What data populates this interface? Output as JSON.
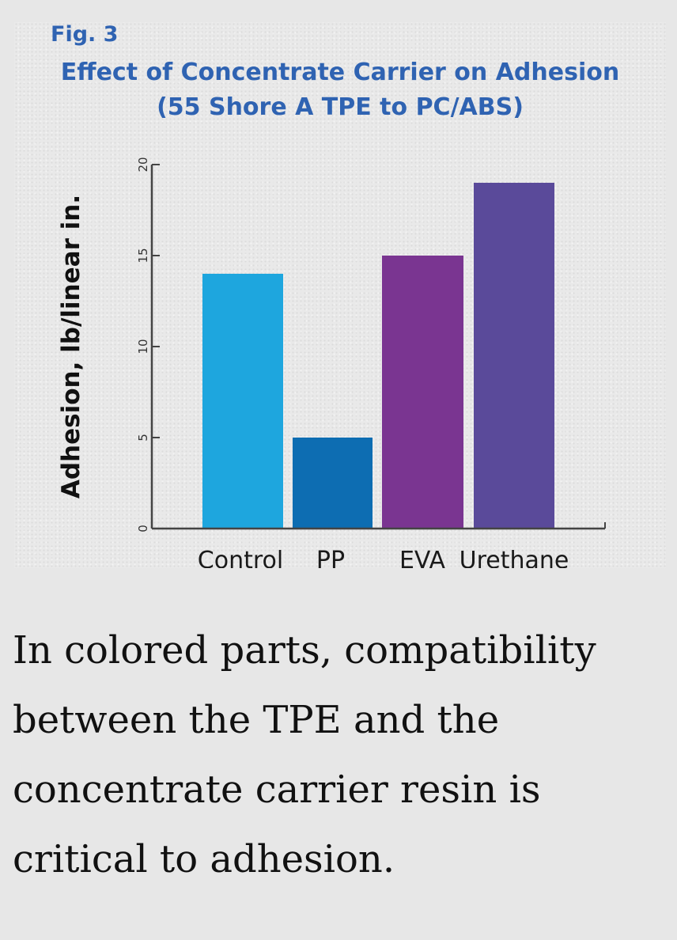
{
  "figure": {
    "label": "Fig. 3",
    "title_line1": "Effect of Concentrate Carrier on Adhesion",
    "title_line2": "(55 Shore A TPE to PC/ABS)"
  },
  "chart_data": {
    "type": "bar",
    "categories": [
      "Control",
      "PP",
      "EVA",
      "Urethane"
    ],
    "values": [
      14,
      5,
      15,
      19
    ],
    "colors": [
      "#1ea6de",
      "#0d6db2",
      "#7a3591",
      "#5a4a9a"
    ],
    "ylabel": "Adhesion, lb/linear in.",
    "xlabel": "",
    "ylim": [
      0,
      20
    ],
    "yticks": [
      0,
      5,
      10,
      15,
      20
    ],
    "grid": false
  },
  "caption": "In colored parts, compatibility between the TPE and the concentrate carrier resin is critical to adhesion."
}
